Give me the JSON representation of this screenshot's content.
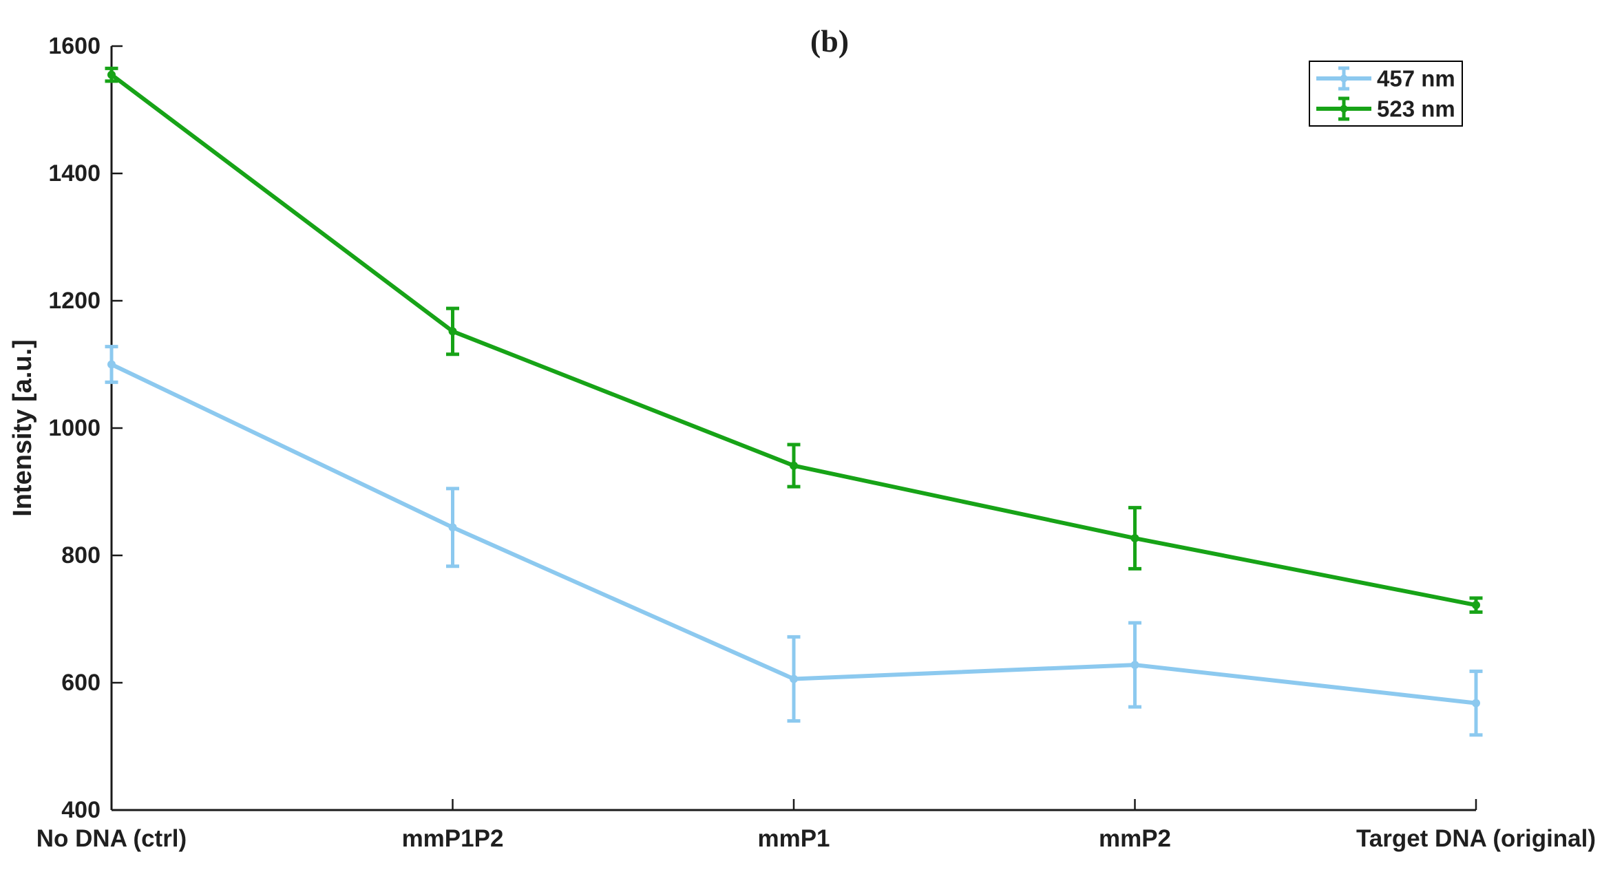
{
  "figure": {
    "background": "#FFFFFF"
  },
  "chart_data": {
    "type": "line",
    "title": "(b)",
    "xlabel": "",
    "ylabel": "Intensity [a.u.]",
    "categories": [
      "No DNA (ctrl)",
      "mmP1P2",
      "mmP1",
      "mmP2",
      "Target DNA (original)"
    ],
    "series": [
      {
        "name": "457 nm",
        "color": "#8CC9EF",
        "values": [
          1100,
          844,
          606,
          628,
          568
        ],
        "errors": [
          28,
          61,
          66,
          66,
          50
        ]
      },
      {
        "name": "523 nm",
        "color": "#17A317",
        "values": [
          1555,
          1152,
          941,
          827,
          722
        ],
        "errors": [
          10,
          36,
          33,
          48,
          11
        ]
      }
    ],
    "ylim": [
      400,
      1600
    ],
    "yticks": [
      400,
      600,
      800,
      1000,
      1200,
      1400,
      1600
    ],
    "ytick_labels": [
      "400",
      "600",
      "800",
      "1000",
      "1200",
      "1400",
      "1600"
    ],
    "grid": false,
    "legend_position": "top-right",
    "legend_border_color": "#000000",
    "axis_color": "#1a1a1a",
    "text_color": "#1f1f1f",
    "marker": "circle",
    "error_bars": true
  }
}
